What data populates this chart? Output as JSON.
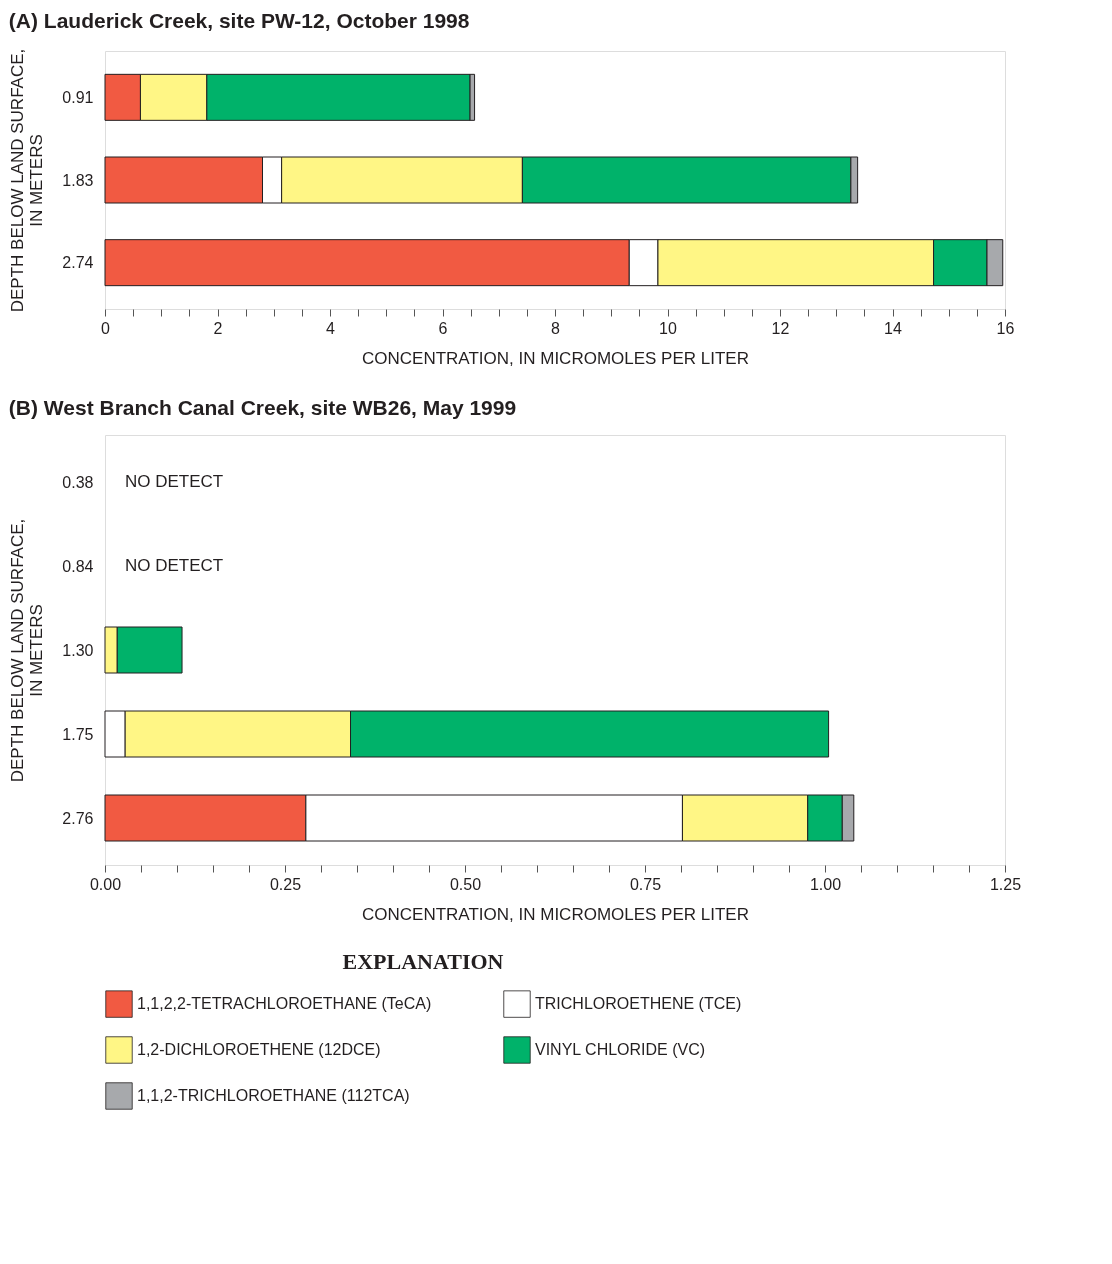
{
  "chart_data": [
    {
      "type": "bar",
      "orientation": "horizontal",
      "stacked": true,
      "title": "(A) Lauderick Creek, site PW-12, October 1998",
      "xlabel": "CONCENTRATION, IN MICROMOLES PER LITER",
      "ylabel": "DEPTH BELOW LAND SURFACE,\nIN METERS",
      "categories": [
        "0.91",
        "1.83",
        "2.74"
      ],
      "xlim": [
        0,
        16
      ],
      "xticks": [
        0,
        {
          "value": 0.5,
          "label": null
        },
        {
          "value": 1,
          "label": null
        },
        {
          "value": 1.5,
          "label": null
        },
        2,
        {
          "value": 2.5,
          "label": null
        },
        {
          "value": 3,
          "label": null
        },
        {
          "value": 3.5,
          "label": null
        },
        4,
        {
          "value": 4.5,
          "label": null
        },
        {
          "value": 5,
          "label": null
        },
        {
          "value": 5.5,
          "label": null
        },
        6,
        {
          "value": 6.5,
          "label": null
        },
        {
          "value": 7,
          "label": null
        },
        {
          "value": 7.5,
          "label": null
        },
        8,
        {
          "value": 8.5,
          "label": null
        },
        {
          "value": 9,
          "label": null
        },
        {
          "value": 9.5,
          "label": null
        },
        10,
        {
          "value": 10.5,
          "label": null
        },
        {
          "value": 11,
          "label": null
        },
        {
          "value": 11.5,
          "label": null
        },
        12,
        {
          "value": 12.5,
          "label": null
        },
        {
          "value": 13,
          "label": null
        },
        {
          "value": 13.5,
          "label": null
        },
        14,
        {
          "value": 14.5,
          "label": null
        },
        {
          "value": 15,
          "label": null
        },
        {
          "value": 15.5,
          "label": null
        },
        16
      ],
      "grid": false,
      "legend": false,
      "series": [
        {
          "color": "#f15a42",
          "values": [
            0.63,
            2.8,
            9.32
          ]
        },
        {
          "color": "#ffffff",
          "values": [
            null,
            0.34,
            0.51
          ]
        },
        {
          "color": "#fff685",
          "values": [
            1.18,
            4.28,
            4.9
          ]
        },
        {
          "color": "#00b26a",
          "values": [
            4.68,
            5.84,
            0.95
          ]
        },
        {
          "color": "#a7a9ac",
          "values": [
            0.08,
            0.12,
            0.28
          ]
        }
      ]
    },
    {
      "type": "bar",
      "orientation": "horizontal",
      "stacked": true,
      "title": "(B) West Branch Canal Creek, site WB26, May 1999",
      "xlabel": "CONCENTRATION, IN MICROMOLES PER LITER",
      "ylabel": "DEPTH BELOW LAND SURFACE,\nIN METERS",
      "categories": [
        "0.38",
        "0.84",
        "1.30",
        "1.75",
        "2.76"
      ],
      "xlim": [
        0,
        1.25
      ],
      "xticks": [
        {
          "value": 0,
          "label": "0.00"
        },
        {
          "value": 0.05,
          "label": null
        },
        {
          "value": 0.1,
          "label": null
        },
        {
          "value": 0.15,
          "label": null
        },
        {
          "value": 0.2,
          "label": null
        },
        {
          "value": 0.25,
          "label": "0.25"
        },
        {
          "value": 0.3,
          "label": null
        },
        {
          "value": 0.35,
          "label": null
        },
        {
          "value": 0.4,
          "label": null
        },
        {
          "value": 0.45,
          "label": null
        },
        {
          "value": 0.5,
          "label": "0.50"
        },
        {
          "value": 0.55,
          "label": null
        },
        {
          "value": 0.6,
          "label": null
        },
        {
          "value": 0.65,
          "label": null
        },
        {
          "value": 0.7,
          "label": null
        },
        {
          "value": 0.75,
          "label": "0.75"
        },
        {
          "value": 0.8,
          "label": null
        },
        {
          "value": 0.85,
          "label": null
        },
        {
          "value": 0.9,
          "label": null
        },
        {
          "value": 0.95,
          "label": null
        },
        {
          "value": 1,
          "label": "1.00"
        },
        {
          "value": 1.05,
          "label": null
        },
        {
          "value": 1.1,
          "label": null
        },
        {
          "value": 1.15,
          "label": null
        },
        {
          "value": 1.2,
          "label": null
        },
        {
          "value": 1.25,
          "label": "1.25"
        }
      ],
      "grid": false,
      "legend": "bottom",
      "legend_title": "EXPLANATION",
      "annotations": [
        "NO DETECT",
        "NO DETECT"
      ],
      "series": [
        {
          "name": "1,1,2,2-TETRACHLOROETHANE (TeCA)",
          "color": "#f15a42",
          "values": [
            null,
            null,
            null,
            null,
            0.279
          ]
        },
        {
          "name": "TRICHLOROETHENE (TCE)",
          "color": "#ffffff",
          "values": [
            null,
            null,
            null,
            0.028,
            0.523
          ]
        },
        {
          "name": "1,2-DICHLOROETHENE (12DCE)",
          "color": "#fff685",
          "values": [
            null,
            null,
            0.017,
            0.313,
            0.174
          ]
        },
        {
          "name": "VINYL CHLORIDE (VC)",
          "color": "#00b26a",
          "values": [
            null,
            null,
            0.09,
            0.664,
            0.048
          ]
        },
        {
          "name": "1,1,2-TRICHLOROETHANE (112TCA)",
          "color": "#a7a9ac",
          "values": [
            null,
            null,
            null,
            null,
            0.016
          ]
        }
      ]
    }
  ]
}
